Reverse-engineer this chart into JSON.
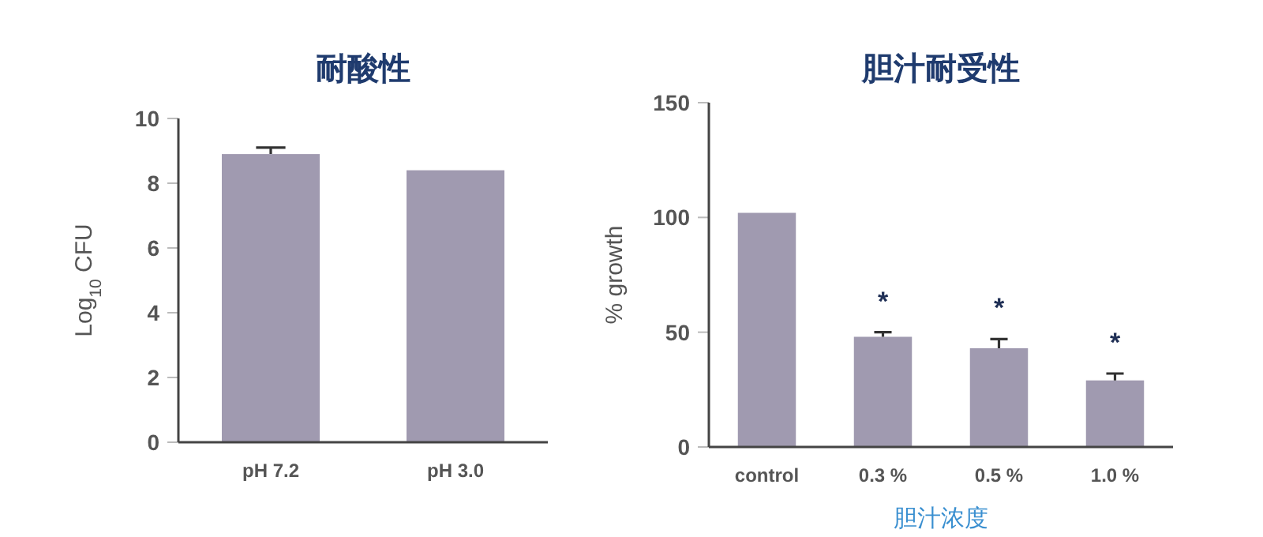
{
  "chart_data": [
    {
      "type": "bar",
      "title": "耐酸性",
      "ylabel": "Log$_{10}$ CFU",
      "categories": [
        "pH 7.2",
        "pH 3.0"
      ],
      "values": [
        8.9,
        8.4
      ],
      "errors": [
        [
          8.9,
          9.1
        ],
        null
      ],
      "color": "#a09ab0",
      "ylim": [
        0,
        10
      ],
      "yticks": [
        0,
        2,
        4,
        6,
        8,
        10
      ]
    },
    {
      "type": "bar",
      "title": "胆汁耐受性",
      "ylabel": "% growth",
      "xlabel": "胆汁浓度",
      "categories": [
        "control",
        "0.3 %",
        "0.5 %",
        "1.0 %"
      ],
      "values": [
        102,
        48,
        43,
        29
      ],
      "errors": [
        null,
        [
          48,
          50
        ],
        [
          43,
          47
        ],
        [
          29,
          32
        ]
      ],
      "color": "#a09ab0",
      "ylim": [
        0,
        150
      ],
      "yticks": [
        0,
        50,
        100,
        150
      ],
      "annotations": [
        "*",
        "*",
        "*"
      ]
    }
  ]
}
